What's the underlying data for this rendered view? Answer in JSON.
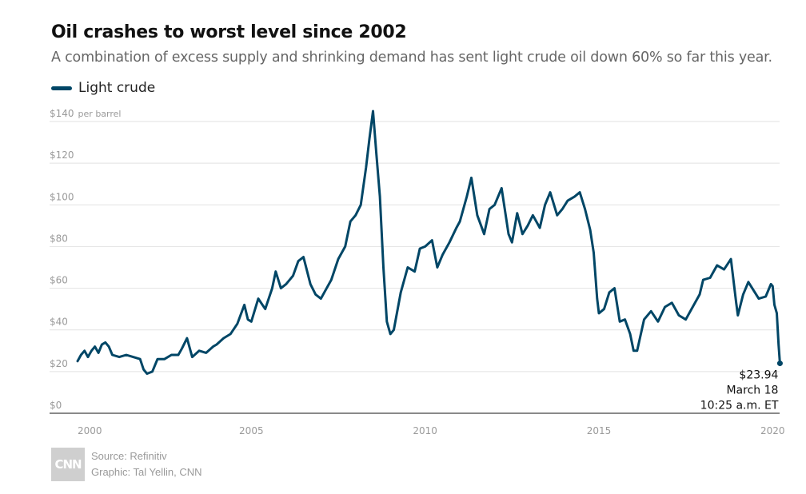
{
  "header": {
    "title": "Oil crashes to worst level since 2002",
    "subtitle": "A combination of excess supply and shrinking demand has sent light crude oil down 60% so far this year."
  },
  "legend": {
    "label": "Light crude",
    "color": "#004666"
  },
  "annotation": {
    "value": "$23.94",
    "date": "March 18",
    "time": "10:25 a.m. ET"
  },
  "footer": {
    "source": "Source: Refinitiv",
    "graphic": "Graphic: Tal Yellin, CNN",
    "logo_text": "CNN"
  },
  "chart_data": {
    "type": "line",
    "xlim": [
      2000,
      2020.2
    ],
    "ylim": [
      0,
      140
    ],
    "y_ticks": [
      {
        "value": 0,
        "label": "$0"
      },
      {
        "value": 20,
        "label": "$20"
      },
      {
        "value": 40,
        "label": "$40"
      },
      {
        "value": 60,
        "label": "$60"
      },
      {
        "value": 80,
        "label": "$80"
      },
      {
        "value": 100,
        "label": "$100"
      },
      {
        "value": 120,
        "label": "$120"
      },
      {
        "value": 140,
        "label": "$140"
      }
    ],
    "y_unit_label": "per barrel",
    "x_ticks": [
      {
        "value": 2000,
        "label": "2000"
      },
      {
        "value": 2005,
        "label": "2005"
      },
      {
        "value": 2010,
        "label": "2010"
      },
      {
        "value": 2015,
        "label": "2015"
      },
      {
        "value": 2020,
        "label": "2020"
      }
    ],
    "grid": true,
    "series": [
      {
        "name": "Light crude",
        "color": "#004666",
        "points": [
          [
            2000.0,
            25
          ],
          [
            2000.1,
            28
          ],
          [
            2000.2,
            30
          ],
          [
            2000.3,
            27
          ],
          [
            2000.4,
            30
          ],
          [
            2000.5,
            32
          ],
          [
            2000.6,
            29
          ],
          [
            2000.7,
            33
          ],
          [
            2000.8,
            34
          ],
          [
            2000.9,
            32
          ],
          [
            2001.0,
            28
          ],
          [
            2001.2,
            27
          ],
          [
            2001.4,
            28
          ],
          [
            2001.6,
            27
          ],
          [
            2001.8,
            26
          ],
          [
            2001.9,
            21
          ],
          [
            2002.0,
            19
          ],
          [
            2002.15,
            20
          ],
          [
            2002.3,
            26
          ],
          [
            2002.5,
            26
          ],
          [
            2002.7,
            28
          ],
          [
            2002.9,
            28
          ],
          [
            2003.0,
            31
          ],
          [
            2003.15,
            36
          ],
          [
            2003.3,
            27
          ],
          [
            2003.5,
            30
          ],
          [
            2003.7,
            29
          ],
          [
            2003.9,
            32
          ],
          [
            2004.0,
            33
          ],
          [
            2004.2,
            36
          ],
          [
            2004.4,
            38
          ],
          [
            2004.6,
            43
          ],
          [
            2004.8,
            52
          ],
          [
            2004.9,
            45
          ],
          [
            2005.0,
            44
          ],
          [
            2005.2,
            55
          ],
          [
            2005.4,
            50
          ],
          [
            2005.6,
            60
          ],
          [
            2005.7,
            68
          ],
          [
            2005.85,
            60
          ],
          [
            2006.0,
            62
          ],
          [
            2006.2,
            66
          ],
          [
            2006.35,
            73
          ],
          [
            2006.5,
            75
          ],
          [
            2006.7,
            62
          ],
          [
            2006.85,
            57
          ],
          [
            2007.0,
            55
          ],
          [
            2007.1,
            58
          ],
          [
            2007.3,
            64
          ],
          [
            2007.5,
            74
          ],
          [
            2007.7,
            80
          ],
          [
            2007.85,
            92
          ],
          [
            2008.0,
            95
          ],
          [
            2008.15,
            100
          ],
          [
            2008.3,
            118
          ],
          [
            2008.4,
            132
          ],
          [
            2008.5,
            145
          ],
          [
            2008.6,
            124
          ],
          [
            2008.7,
            104
          ],
          [
            2008.8,
            70
          ],
          [
            2008.9,
            44
          ],
          [
            2009.0,
            38
          ],
          [
            2009.1,
            40
          ],
          [
            2009.3,
            58
          ],
          [
            2009.5,
            70
          ],
          [
            2009.7,
            68
          ],
          [
            2009.85,
            79
          ],
          [
            2010.0,
            80
          ],
          [
            2010.2,
            83
          ],
          [
            2010.35,
            70
          ],
          [
            2010.5,
            76
          ],
          [
            2010.7,
            82
          ],
          [
            2010.9,
            89
          ],
          [
            2011.0,
            92
          ],
          [
            2011.2,
            104
          ],
          [
            2011.33,
            113
          ],
          [
            2011.5,
            95
          ],
          [
            2011.7,
            86
          ],
          [
            2011.85,
            98
          ],
          [
            2012.0,
            100
          ],
          [
            2012.2,
            108
          ],
          [
            2012.4,
            86
          ],
          [
            2012.5,
            82
          ],
          [
            2012.65,
            96
          ],
          [
            2012.8,
            86
          ],
          [
            2012.95,
            90
          ],
          [
            2013.1,
            95
          ],
          [
            2013.3,
            89
          ],
          [
            2013.45,
            100
          ],
          [
            2013.6,
            106
          ],
          [
            2013.8,
            95
          ],
          [
            2013.95,
            98
          ],
          [
            2014.1,
            102
          ],
          [
            2014.3,
            104
          ],
          [
            2014.45,
            106
          ],
          [
            2014.6,
            98
          ],
          [
            2014.75,
            88
          ],
          [
            2014.85,
            77
          ],
          [
            2014.95,
            55
          ],
          [
            2015.0,
            48
          ],
          [
            2015.15,
            50
          ],
          [
            2015.3,
            58
          ],
          [
            2015.45,
            60
          ],
          [
            2015.6,
            44
          ],
          [
            2015.75,
            45
          ],
          [
            2015.9,
            38
          ],
          [
            2016.0,
            30
          ],
          [
            2016.1,
            30
          ],
          [
            2016.3,
            45
          ],
          [
            2016.5,
            49
          ],
          [
            2016.7,
            44
          ],
          [
            2016.9,
            51
          ],
          [
            2017.1,
            53
          ],
          [
            2017.3,
            47
          ],
          [
            2017.5,
            45
          ],
          [
            2017.7,
            51
          ],
          [
            2017.9,
            57
          ],
          [
            2018.0,
            64
          ],
          [
            2018.2,
            65
          ],
          [
            2018.4,
            71
          ],
          [
            2018.6,
            69
          ],
          [
            2018.8,
            74
          ],
          [
            2018.95,
            53
          ],
          [
            2019.0,
            47
          ],
          [
            2019.15,
            57
          ],
          [
            2019.3,
            63
          ],
          [
            2019.45,
            59
          ],
          [
            2019.6,
            55
          ],
          [
            2019.8,
            56
          ],
          [
            2019.95,
            62
          ],
          [
            2020.0,
            61
          ],
          [
            2020.05,
            52
          ],
          [
            2020.12,
            48
          ],
          [
            2020.17,
            33
          ],
          [
            2020.21,
            23.94
          ]
        ]
      }
    ]
  }
}
